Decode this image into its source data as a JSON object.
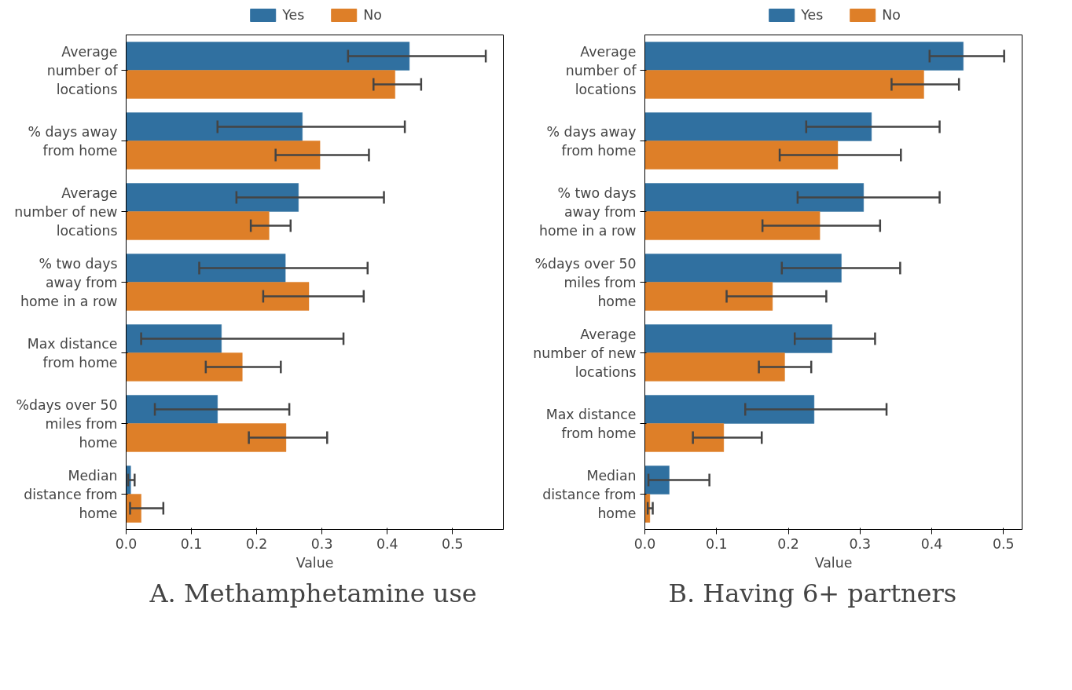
{
  "chart_data": [
    {
      "type": "bar",
      "orientation": "horizontal",
      "title": "A.   Methamphetamine use",
      "xlabel": "Value",
      "categories": [
        "Average number of locations",
        "% days away from home",
        "Average number of new locations",
        "% two days away from home in a row",
        "Max distance from home",
        "%days over 50 miles from home",
        "Median distance from home"
      ],
      "series": [
        {
          "name": "Yes",
          "color": "#3070a0",
          "values": [
            0.434,
            0.27,
            0.264,
            0.244,
            0.146,
            0.14,
            0.007
          ],
          "errors": [
            [
              0.34,
              0.551
            ],
            [
              0.14,
              0.427
            ],
            [
              0.169,
              0.395
            ],
            [
              0.112,
              0.37
            ],
            [
              0.023,
              0.333
            ],
            [
              0.044,
              0.25
            ],
            [
              0.003,
              0.013
            ]
          ]
        },
        {
          "name": "No",
          "color": "#de7f28",
          "values": [
            0.412,
            0.297,
            0.219,
            0.28,
            0.178,
            0.245,
            0.023
          ],
          "errors": [
            [
              0.379,
              0.452
            ],
            [
              0.229,
              0.372
            ],
            [
              0.191,
              0.252
            ],
            [
              0.21,
              0.364
            ],
            [
              0.122,
              0.237
            ],
            [
              0.188,
              0.308
            ],
            [
              0.006,
              0.057
            ]
          ]
        }
      ],
      "xlim": [
        0,
        0.578
      ],
      "xticks": [
        {
          "value": 0,
          "label": "0.0"
        },
        0.1,
        0.2,
        0.3,
        0.4,
        0.5
      ],
      "legend": "top",
      "grid": false
    },
    {
      "type": "bar",
      "orientation": "horizontal",
      "title": "B.   Having 6+ partners",
      "xlabel": "Value",
      "categories": [
        "Average number of locations",
        "% days away from home",
        "% two days away from home in a row",
        "%days over 50 miles from home",
        "Average number of new locations",
        "Max distance from home",
        "Median distance from home"
      ],
      "series": [
        {
          "name": "Yes",
          "color": "#3070a0",
          "values": [
            0.444,
            0.316,
            0.305,
            0.274,
            0.261,
            0.236,
            0.034
          ],
          "errors": [
            [
              0.397,
              0.501
            ],
            [
              0.225,
              0.411
            ],
            [
              0.213,
              0.411
            ],
            [
              0.191,
              0.356
            ],
            [
              0.209,
              0.321
            ],
            [
              0.14,
              0.337
            ],
            [
              0.005,
              0.09
            ]
          ]
        },
        {
          "name": "No",
          "color": "#de7f28",
          "values": [
            0.389,
            0.269,
            0.244,
            0.178,
            0.195,
            0.11,
            0.007
          ],
          "errors": [
            [
              0.344,
              0.438
            ],
            [
              0.188,
              0.357
            ],
            [
              0.164,
              0.328
            ],
            [
              0.114,
              0.253
            ],
            [
              0.159,
              0.232
            ],
            [
              0.067,
              0.163
            ],
            [
              0.004,
              0.011
            ]
          ]
        }
      ],
      "xlim": [
        0,
        0.526
      ],
      "xticks": [
        {
          "value": 0,
          "label": "0.0"
        },
        0.1,
        0.2,
        0.3,
        0.4,
        0.5
      ],
      "legend": "top",
      "grid": false
    }
  ]
}
